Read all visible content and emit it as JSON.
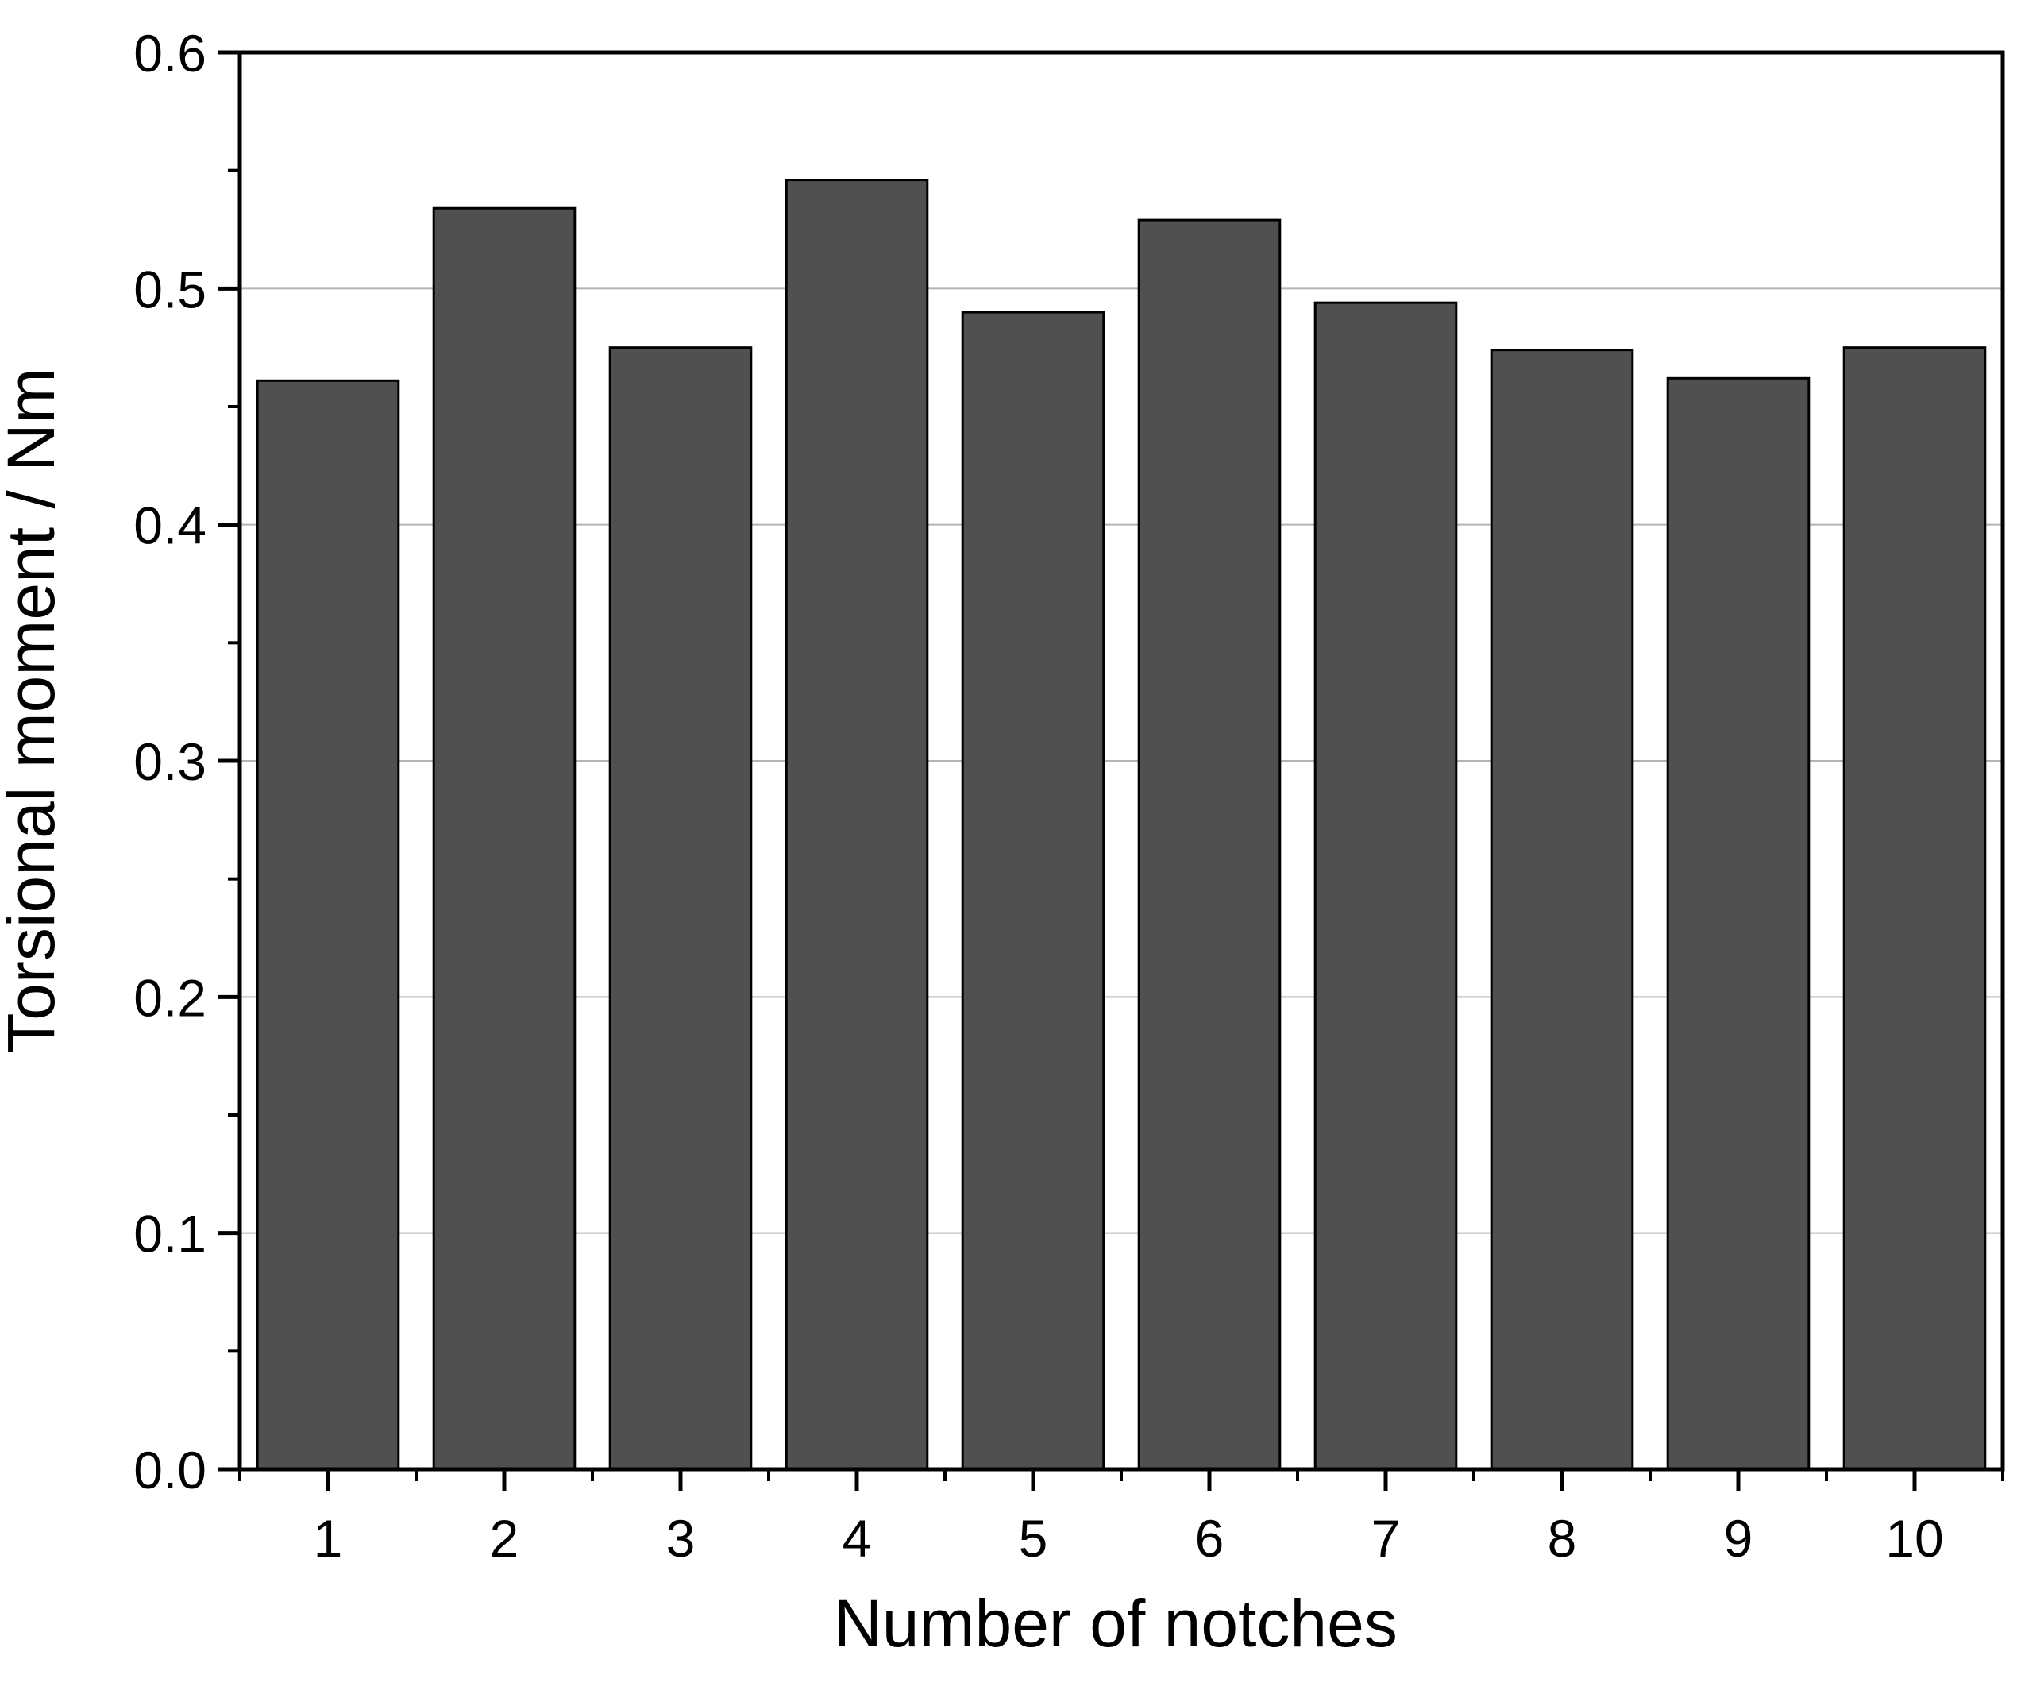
{
  "chart_data": {
    "type": "bar",
    "title": "",
    "xlabel": "Number of notches",
    "ylabel": "Torsional moment / Nm",
    "categories": [
      "1",
      "2",
      "3",
      "4",
      "5",
      "6",
      "7",
      "8",
      "9",
      "10"
    ],
    "values": [
      0.461,
      0.534,
      0.475,
      0.546,
      0.49,
      0.529,
      0.494,
      0.474,
      0.462,
      0.475
    ],
    "ylim": [
      0,
      0.6
    ],
    "yticks": [
      "0.0",
      "0.1",
      "0.2",
      "0.3",
      "0.4",
      "0.5",
      "0.6"
    ],
    "grid": "horizontal",
    "legend": "none",
    "colors": {
      "bar_fill": "#505050",
      "bar_stroke": "#000000",
      "grid": "#b4b4b4",
      "axis": "#000000"
    }
  }
}
